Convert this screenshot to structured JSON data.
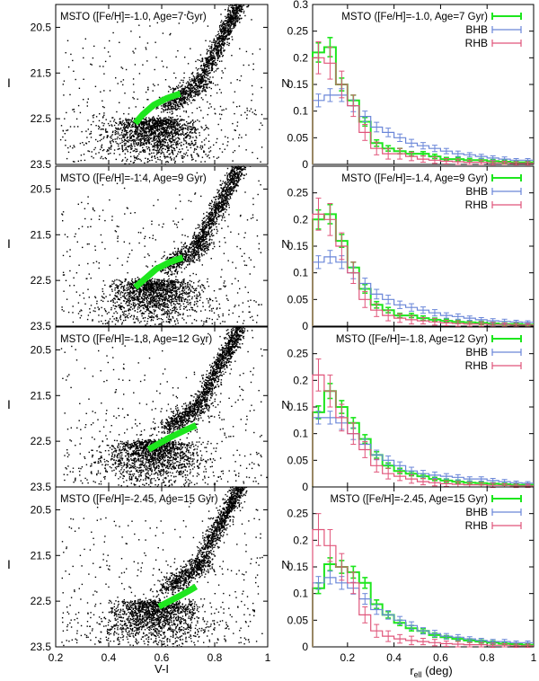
{
  "figure": {
    "cmd_ylabel": "I",
    "cmd_xlabel": "V-I",
    "hist_ylabel": "N",
    "hist_xlabel_main": "r",
    "hist_xlabel_sub": "ell",
    "hist_xlabel_unit": " (deg)"
  },
  "colors": {
    "msto": "#1ee61e",
    "bhb": "#6a86d8",
    "rhb": "#e0557a",
    "stars": "#000000"
  },
  "chart_data": [
    {
      "type": "scatter",
      "panel": "cmd-1",
      "annotation": "MSTO ([Fe/H]=-1.0, Age=7 Gyr)",
      "xlim": [
        0.2,
        1.0
      ],
      "ylim": [
        23.5,
        20.0
      ],
      "xticks": [],
      "yticks": [
        "20.5",
        "21.5",
        "22.5",
        "23.5"
      ],
      "msto_track": {
        "x": [
          0.5,
          0.53,
          0.57,
          0.62,
          0.67
        ],
        "y": [
          22.6,
          22.4,
          22.2,
          22.05,
          21.95
        ]
      }
    },
    {
      "type": "scatter",
      "panel": "cmd-2",
      "annotation": "MSTO ([Fe/H]=-1.4, Age=9 Gyr)",
      "xlim": [
        0.2,
        1.0
      ],
      "ylim": [
        23.5,
        20.0
      ],
      "xticks": [],
      "yticks": [
        "20.5",
        "21.5",
        "22.5",
        "23.5"
      ],
      "msto_track": {
        "x": [
          0.5,
          0.54,
          0.58,
          0.63,
          0.68
        ],
        "y": [
          22.65,
          22.45,
          22.25,
          22.1,
          22.0
        ]
      }
    },
    {
      "type": "scatter",
      "panel": "cmd-3",
      "annotation": "MSTO ([Fe/H]=-1.8, Age=12 Gyr)",
      "xlim": [
        0.2,
        1.0
      ],
      "ylim": [
        23.5,
        20.0
      ],
      "xticks": [],
      "yticks": [
        "20.5",
        "21.5",
        "22.5",
        "23.5"
      ],
      "msto_track": {
        "x": [
          0.55,
          0.59,
          0.63,
          0.68,
          0.73
        ],
        "y": [
          22.68,
          22.55,
          22.42,
          22.28,
          22.15
        ]
      }
    },
    {
      "type": "scatter",
      "panel": "cmd-4",
      "annotation": "MSTO ([Fe/H]=-2.45, Age=15 Gyr)",
      "xlim": [
        0.2,
        1.0
      ],
      "ylim": [
        23.5,
        20.0
      ],
      "xticks": [
        "0.2",
        "0.4",
        "0.6",
        "0.8",
        "1"
      ],
      "yticks": [
        "20.5",
        "21.5",
        "22.5",
        "23.5"
      ],
      "msto_track": {
        "x": [
          0.59,
          0.63,
          0.67,
          0.71,
          0.73
        ],
        "y": [
          22.62,
          22.5,
          22.38,
          22.25,
          22.18
        ]
      }
    },
    {
      "type": "line",
      "panel": "hist-1",
      "xlim": [
        0.05,
        1.0
      ],
      "ylim": [
        0,
        0.3
      ],
      "yticks": [
        "0",
        "0.05",
        "0.1",
        "0.15",
        "0.2",
        "0.25",
        "0.3"
      ],
      "xticks": [],
      "x": [
        0.075,
        0.125,
        0.175,
        0.225,
        0.275,
        0.325,
        0.375,
        0.425,
        0.475,
        0.525,
        0.575,
        0.625,
        0.675,
        0.725,
        0.775,
        0.825,
        0.875,
        0.925,
        0.975
      ],
      "legend": [
        "MSTO ([Fe/H]=-1.0, Age=7 Gyr)",
        "BHB",
        "RHB"
      ],
      "series": [
        {
          "name": "MSTO ([Fe/H]=-1.0, Age=7 Gyr)",
          "color_key": "msto",
          "values": [
            0.21,
            0.22,
            0.15,
            0.12,
            0.08,
            0.04,
            0.03,
            0.025,
            0.02,
            0.02,
            0.015,
            0.01,
            0.01,
            0.008,
            0.008,
            0.006,
            0.005,
            0.004,
            0.004
          ],
          "err": [
            0.018,
            0.018,
            0.012,
            0.01,
            0.008,
            0.006,
            0.005,
            0.005,
            0.004,
            0.004,
            0.004,
            0.003,
            0.003,
            0.003,
            0.003,
            0.003,
            0.003,
            0.002,
            0.002
          ]
        },
        {
          "name": "BHB",
          "color_key": "bhb",
          "values": [
            0.12,
            0.13,
            0.13,
            0.11,
            0.09,
            0.07,
            0.06,
            0.05,
            0.04,
            0.035,
            0.03,
            0.025,
            0.02,
            0.018,
            0.015,
            0.012,
            0.01,
            0.008,
            0.008
          ],
          "err": [
            0.012,
            0.012,
            0.012,
            0.011,
            0.01,
            0.009,
            0.008,
            0.007,
            0.007,
            0.006,
            0.006,
            0.005,
            0.005,
            0.004,
            0.004,
            0.004,
            0.004,
            0.003,
            0.003
          ]
        },
        {
          "name": "RHB",
          "color_key": "rhb",
          "values": [
            0.2,
            0.19,
            0.15,
            0.11,
            0.06,
            0.03,
            0.02,
            0.02,
            0.015,
            0.01,
            0.008,
            0.006,
            0.005,
            0.004,
            0.004,
            0.003,
            0.003,
            0.002,
            0.002
          ],
          "err": [
            0.03,
            0.03,
            0.025,
            0.02,
            0.015,
            0.012,
            0.01,
            0.01,
            0.008,
            0.006,
            0.006,
            0.005,
            0.005,
            0.004,
            0.004,
            0.004,
            0.003,
            0.003,
            0.003
          ]
        }
      ]
    },
    {
      "type": "line",
      "panel": "hist-2",
      "xlim": [
        0.05,
        1.0
      ],
      "ylim": [
        0,
        0.3
      ],
      "yticks": [
        "0",
        "0.05",
        "0.1",
        "0.15",
        "0.2",
        "0.25"
      ],
      "xticks": [],
      "x": [
        0.075,
        0.125,
        0.175,
        0.225,
        0.275,
        0.325,
        0.375,
        0.425,
        0.475,
        0.525,
        0.575,
        0.625,
        0.675,
        0.725,
        0.775,
        0.825,
        0.875,
        0.925,
        0.975
      ],
      "legend": [
        "MSTO ([Fe/H]=-1.4, Age=9 Gyr)",
        "BHB",
        "RHB"
      ],
      "series": [
        {
          "name": "MSTO ([Fe/H]=-1.4, Age=9 Gyr)",
          "color_key": "msto",
          "values": [
            0.2,
            0.21,
            0.16,
            0.11,
            0.07,
            0.04,
            0.03,
            0.02,
            0.02,
            0.015,
            0.012,
            0.01,
            0.008,
            0.007,
            0.006,
            0.005,
            0.004,
            0.004,
            0.003
          ],
          "err": [
            0.018,
            0.018,
            0.012,
            0.01,
            0.008,
            0.006,
            0.005,
            0.004,
            0.004,
            0.004,
            0.003,
            0.003,
            0.003,
            0.003,
            0.003,
            0.002,
            0.002,
            0.002,
            0.002
          ]
        },
        {
          "name": "BHB",
          "color_key": "bhb",
          "values": [
            0.12,
            0.13,
            0.12,
            0.1,
            0.08,
            0.06,
            0.05,
            0.04,
            0.035,
            0.03,
            0.025,
            0.02,
            0.018,
            0.015,
            0.012,
            0.01,
            0.009,
            0.008,
            0.007
          ],
          "err": [
            0.012,
            0.012,
            0.012,
            0.011,
            0.01,
            0.009,
            0.008,
            0.007,
            0.007,
            0.006,
            0.006,
            0.005,
            0.005,
            0.004,
            0.004,
            0.004,
            0.004,
            0.003,
            0.003
          ]
        },
        {
          "name": "RHB",
          "color_key": "rhb",
          "values": [
            0.21,
            0.2,
            0.15,
            0.1,
            0.05,
            0.03,
            0.02,
            0.015,
            0.012,
            0.01,
            0.008,
            0.006,
            0.005,
            0.004,
            0.004,
            0.003,
            0.003,
            0.002,
            0.002
          ],
          "err": [
            0.03,
            0.03,
            0.025,
            0.02,
            0.015,
            0.012,
            0.01,
            0.008,
            0.008,
            0.006,
            0.006,
            0.005,
            0.005,
            0.004,
            0.004,
            0.004,
            0.003,
            0.003,
            0.003
          ]
        }
      ]
    },
    {
      "type": "line",
      "panel": "hist-3",
      "xlim": [
        0.05,
        1.0
      ],
      "ylim": [
        0,
        0.3
      ],
      "yticks": [
        "0",
        "0.05",
        "0.1",
        "0.15",
        "0.2",
        "0.25"
      ],
      "xticks": [],
      "x": [
        0.075,
        0.125,
        0.175,
        0.225,
        0.275,
        0.325,
        0.375,
        0.425,
        0.475,
        0.525,
        0.575,
        0.625,
        0.675,
        0.725,
        0.775,
        0.825,
        0.875,
        0.925,
        0.975
      ],
      "legend": [
        "MSTO ([Fe/H]=-1.8, Age=12 Gyr)",
        "BHB",
        "RHB"
      ],
      "series": [
        {
          "name": "MSTO ([Fe/H]=-1.8, Age=12 Gyr)",
          "color_key": "msto",
          "values": [
            0.14,
            0.18,
            0.15,
            0.12,
            0.09,
            0.06,
            0.04,
            0.03,
            0.025,
            0.02,
            0.015,
            0.012,
            0.01,
            0.008,
            0.007,
            0.006,
            0.005,
            0.004,
            0.004
          ],
          "err": [
            0.012,
            0.014,
            0.012,
            0.01,
            0.008,
            0.006,
            0.005,
            0.005,
            0.004,
            0.004,
            0.003,
            0.003,
            0.003,
            0.003,
            0.003,
            0.002,
            0.002,
            0.002,
            0.002
          ]
        },
        {
          "name": "BHB",
          "color_key": "bhb",
          "values": [
            0.13,
            0.13,
            0.12,
            0.1,
            0.08,
            0.06,
            0.05,
            0.04,
            0.03,
            0.025,
            0.022,
            0.02,
            0.018,
            0.015,
            0.015,
            0.012,
            0.01,
            0.008,
            0.007
          ],
          "err": [
            0.012,
            0.012,
            0.012,
            0.011,
            0.01,
            0.009,
            0.008,
            0.007,
            0.007,
            0.006,
            0.006,
            0.005,
            0.005,
            0.004,
            0.004,
            0.004,
            0.004,
            0.003,
            0.003
          ]
        },
        {
          "name": "RHB",
          "color_key": "rhb",
          "values": [
            0.21,
            0.18,
            0.13,
            0.1,
            0.07,
            0.04,
            0.025,
            0.02,
            0.015,
            0.01,
            0.008,
            0.006,
            0.005,
            0.004,
            0.004,
            0.003,
            0.003,
            0.002,
            0.002
          ],
          "err": [
            0.03,
            0.03,
            0.025,
            0.02,
            0.015,
            0.012,
            0.01,
            0.008,
            0.008,
            0.006,
            0.006,
            0.005,
            0.005,
            0.004,
            0.004,
            0.004,
            0.003,
            0.003,
            0.003
          ]
        }
      ]
    },
    {
      "type": "line",
      "panel": "hist-4",
      "xlim": [
        0.05,
        1.0
      ],
      "ylim": [
        0,
        0.3
      ],
      "yticks": [
        "0",
        "0.05",
        "0.1",
        "0.15",
        "0.2",
        "0.25"
      ],
      "xticks": [
        "0.2",
        "0.4",
        "0.6",
        "0.8",
        "1"
      ],
      "x": [
        0.075,
        0.125,
        0.175,
        0.225,
        0.275,
        0.325,
        0.375,
        0.425,
        0.475,
        0.525,
        0.575,
        0.625,
        0.675,
        0.725,
        0.775,
        0.825,
        0.875,
        0.925,
        0.975
      ],
      "legend": [
        "MSTO ([Fe/H]=-2.45, Age=15 Gyr)",
        "BHB",
        "RHB"
      ],
      "series": [
        {
          "name": "MSTO ([Fe/H]=-2.45, Age=15 Gyr)",
          "color_key": "msto",
          "values": [
            0.11,
            0.155,
            0.15,
            0.14,
            0.12,
            0.08,
            0.06,
            0.045,
            0.035,
            0.03,
            0.022,
            0.018,
            0.015,
            0.012,
            0.01,
            0.008,
            0.006,
            0.005,
            0.004
          ],
          "err": [
            0.01,
            0.012,
            0.012,
            0.011,
            0.01,
            0.008,
            0.006,
            0.005,
            0.005,
            0.004,
            0.004,
            0.003,
            0.003,
            0.003,
            0.003,
            0.003,
            0.002,
            0.002,
            0.002
          ]
        },
        {
          "name": "BHB",
          "color_key": "bhb",
          "values": [
            0.12,
            0.13,
            0.12,
            0.11,
            0.09,
            0.07,
            0.06,
            0.05,
            0.04,
            0.03,
            0.025,
            0.02,
            0.018,
            0.015,
            0.012,
            0.01,
            0.01,
            0.008,
            0.008
          ],
          "err": [
            0.012,
            0.012,
            0.012,
            0.011,
            0.01,
            0.009,
            0.008,
            0.007,
            0.007,
            0.006,
            0.006,
            0.005,
            0.005,
            0.004,
            0.004,
            0.004,
            0.004,
            0.003,
            0.003
          ]
        },
        {
          "name": "RHB",
          "color_key": "rhb",
          "values": [
            0.22,
            0.19,
            0.15,
            0.12,
            0.06,
            0.03,
            0.02,
            0.015,
            0.012,
            0.01,
            0.008,
            0.006,
            0.005,
            0.004,
            0.004,
            0.003,
            0.003,
            0.002,
            0.002
          ],
          "err": [
            0.03,
            0.03,
            0.025,
            0.02,
            0.015,
            0.012,
            0.01,
            0.008,
            0.008,
            0.006,
            0.006,
            0.005,
            0.005,
            0.004,
            0.004,
            0.004,
            0.003,
            0.003,
            0.003
          ]
        }
      ]
    }
  ]
}
